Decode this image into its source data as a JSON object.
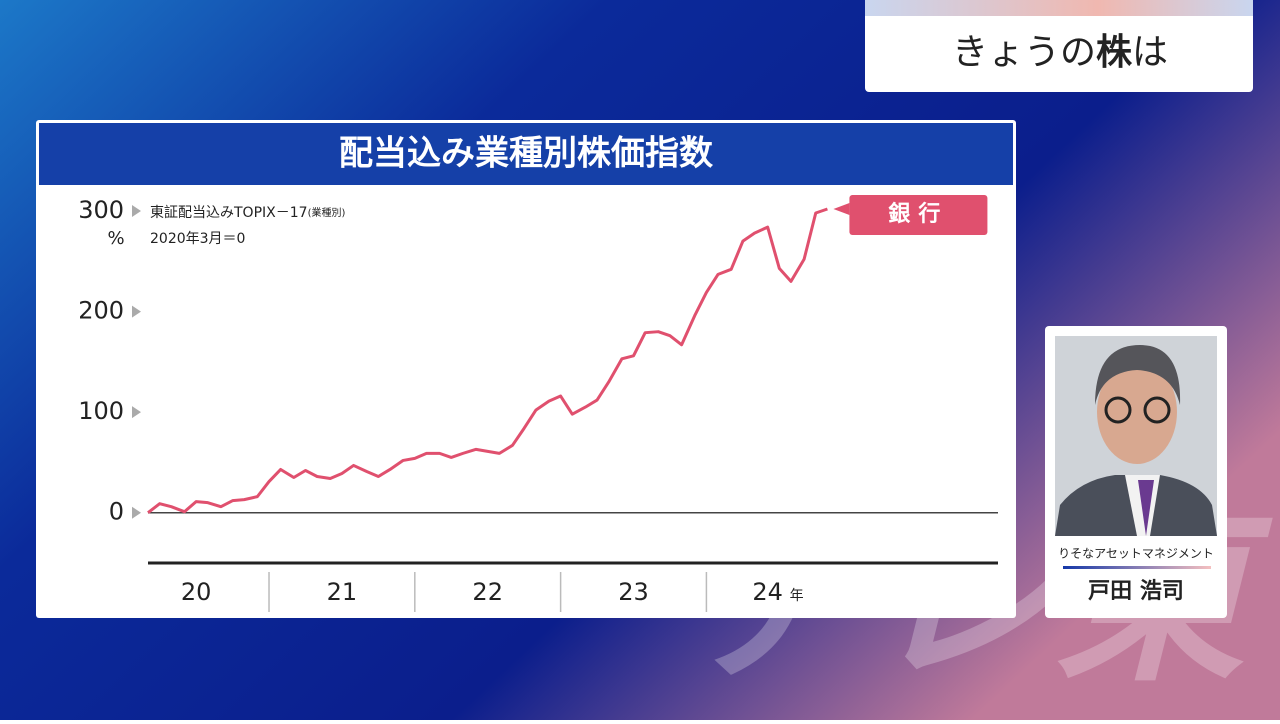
{
  "header": {
    "title_parts": [
      "きょうの",
      "株",
      "は"
    ]
  },
  "chart_data": {
    "type": "line",
    "title": "配当込み業種別株価指数",
    "notes": [
      "東証配当込みTOPIX－17",
      "(業種別)",
      "2020年3月＝0"
    ],
    "y_unit": "%",
    "x_unit": "年",
    "x": [
      20.17,
      20.25,
      20.33,
      20.42,
      20.5,
      20.58,
      20.67,
      20.75,
      20.83,
      20.92,
      21,
      21.08,
      21.17,
      21.25,
      21.33,
      21.42,
      21.5,
      21.58,
      21.67,
      21.75,
      21.83,
      21.92,
      22,
      22.08,
      22.17,
      22.25,
      22.33,
      22.42,
      22.5,
      22.58,
      22.67,
      22.75,
      22.83,
      22.92,
      23,
      23.08,
      23.17,
      23.25,
      23.33,
      23.42,
      23.5,
      23.58,
      23.67,
      23.75,
      23.83,
      23.92,
      24,
      24.08,
      24.17,
      24.25,
      24.33,
      24.42,
      24.5,
      24.58,
      24.67,
      24.75,
      24.83
    ],
    "series": [
      {
        "name": "銀行",
        "color": "#e0506e",
        "values": [
          0,
          9,
          6,
          1,
          11,
          10,
          6,
          12,
          13,
          16,
          31,
          43,
          35,
          42,
          36,
          34,
          39,
          47,
          41,
          36,
          43,
          52,
          54,
          59,
          59,
          55,
          59,
          63,
          61,
          59,
          67,
          84,
          102,
          111,
          116,
          98,
          105,
          112,
          130,
          153,
          156,
          179,
          180,
          176,
          167,
          196,
          219,
          237,
          242,
          270,
          278,
          284,
          243,
          230,
          252,
          298,
          302
        ]
      }
    ],
    "xlim": [
      20.17,
      26
    ],
    "xticks": [
      {
        "value": 20.5,
        "label": "20"
      },
      {
        "value": 21.5,
        "label": "21"
      },
      {
        "value": 22.5,
        "label": "22"
      },
      {
        "value": 23.5,
        "label": "23"
      },
      {
        "value": 24.42,
        "label": "24"
      }
    ],
    "x_separators": [
      21,
      22,
      23,
      24
    ],
    "ylim": [
      -50,
      300
    ],
    "yticks": [
      0,
      100,
      200,
      300
    ],
    "grid": false
  },
  "guest": {
    "company": "りそなアセットマネジメント",
    "name": "戸田 浩司"
  },
  "watermark": "テレ東"
}
